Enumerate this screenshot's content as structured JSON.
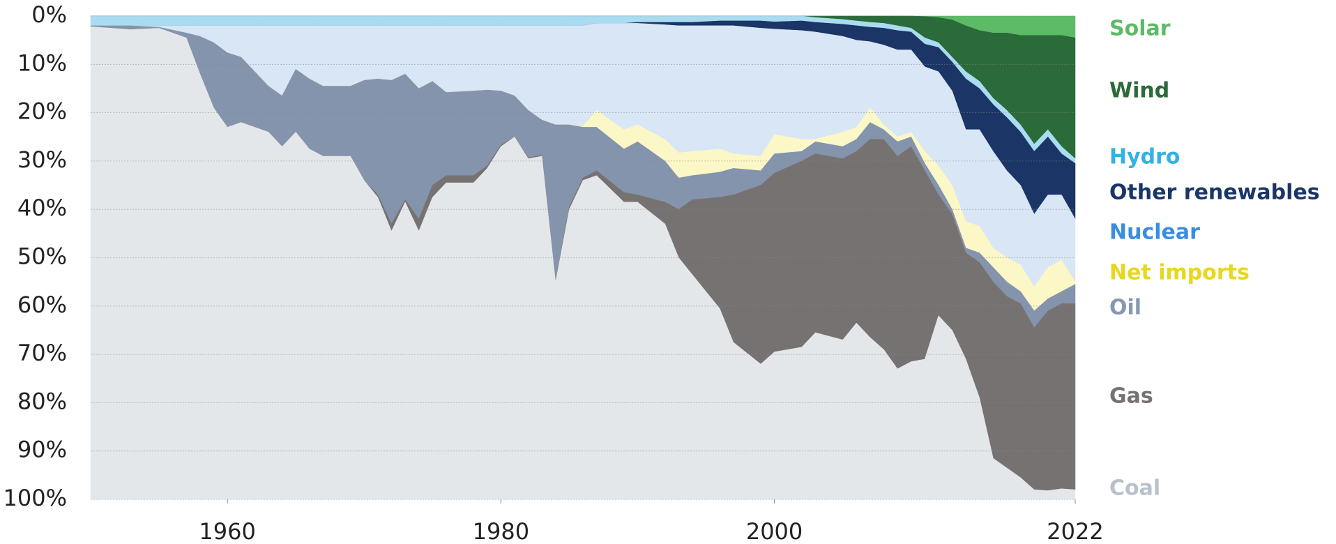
{
  "chart_data": {
    "type": "stacked_area",
    "x": [
      1950,
      1953,
      1955,
      1957,
      1958,
      1959,
      1960,
      1961,
      1963,
      1964,
      1965,
      1966,
      1967,
      1969,
      1970,
      1971,
      1972,
      1973,
      1974,
      1975,
      1976,
      1978,
      1979,
      1980,
      1981,
      1982,
      1983,
      1984,
      1985,
      1986,
      1987,
      1989,
      1990,
      1992,
      1993,
      1994,
      1996,
      1997,
      1999,
      2000,
      2002,
      2003,
      2005,
      2006,
      2007,
      2008,
      2009,
      2010,
      2011,
      2012,
      2013,
      2014,
      2015,
      2016,
      2017,
      2018,
      2019,
      2020,
      2021,
      2022
    ],
    "series": [
      {
        "name": "Solar",
        "color": "#5dbb67",
        "label_color": "#5dbb67",
        "values": [
          0,
          0,
          0,
          0,
          0,
          0,
          0,
          0,
          0,
          0,
          0,
          0,
          0,
          0,
          0,
          0,
          0,
          0,
          0,
          0,
          0,
          0,
          0,
          0,
          0,
          0,
          0,
          0,
          0,
          0,
          0,
          0,
          0,
          0,
          0,
          0,
          0,
          0,
          0,
          0,
          0,
          0,
          0,
          0,
          0,
          0,
          0,
          0,
          0.1,
          0.3,
          0.8,
          2,
          3,
          3.5,
          3.5,
          4,
          4,
          4,
          4,
          4.5
        ]
      },
      {
        "name": "Wind",
        "color": "#2b6a39",
        "label_color": "#2b6a39",
        "values": [
          0,
          0,
          0,
          0,
          0,
          0,
          0,
          0,
          0,
          0,
          0,
          0,
          0,
          0,
          0,
          0,
          0,
          0,
          0,
          0,
          0,
          0,
          0,
          0,
          0,
          0,
          0,
          0,
          0,
          0,
          0,
          0,
          0,
          0,
          0,
          0,
          0,
          0,
          0,
          0,
          0,
          0.3,
          0.7,
          1,
          1.3,
          1.5,
          2,
          2.5,
          4.4,
          5.2,
          7.7,
          9.5,
          10.5,
          13.5,
          16,
          18.5,
          22.5,
          19.5,
          23,
          25
        ]
      },
      {
        "name": "Hydro",
        "color": "#a9dcf0",
        "label_color": "#33b1e3",
        "values": [
          2,
          2,
          2,
          2,
          2,
          2,
          2,
          2,
          2,
          2,
          2,
          2,
          2,
          2,
          2,
          2,
          2,
          2,
          2,
          2,
          2,
          2,
          2,
          2,
          2,
          2,
          2,
          2,
          2,
          2,
          1.5,
          1.5,
          1.3,
          1.3,
          1.3,
          1.3,
          1,
          1,
          1,
          1.2,
          1,
          1,
          1,
          1,
          1,
          1,
          1,
          0.8,
          1.3,
          1,
          1,
          1.5,
          1.5,
          1.3,
          1.5,
          1.5,
          1.5,
          1.5,
          1.5,
          1
        ]
      },
      {
        "name": "Other renewables",
        "color": "#1a3566",
        "label_color": "#1a3566",
        "values": [
          0,
          0,
          0,
          0,
          0,
          0,
          0,
          0,
          0,
          0,
          0,
          0,
          0,
          0,
          0,
          0,
          0,
          0,
          0,
          0,
          0,
          0,
          0,
          0,
          0,
          0,
          0,
          0,
          0,
          0,
          0,
          0,
          0.2,
          0.5,
          0.7,
          0.7,
          1,
          1,
          1.5,
          1.5,
          2,
          2,
          2.5,
          3,
          3,
          3.5,
          4,
          3.7,
          4.7,
          5,
          6,
          10.5,
          8.5,
          9.7,
          11,
          11,
          13,
          12,
          8.5,
          11.5
        ]
      },
      {
        "name": "Nuclear",
        "color": "#d8e6f6",
        "label_color": "#3a8de0",
        "values": [
          0,
          0,
          0.3,
          1.5,
          2.2,
          3.5,
          5.6,
          6.5,
          12.5,
          14.5,
          9,
          11,
          12.5,
          12.5,
          11.3,
          11,
          11.3,
          10,
          13,
          11.5,
          13.8,
          13.5,
          13.3,
          13.5,
          14.5,
          17.5,
          19.5,
          20.5,
          20.5,
          20.8,
          18,
          22,
          21,
          23.7,
          26.3,
          26,
          25.5,
          26.5,
          26.5,
          21.8,
          22.5,
          22.2,
          19.8,
          18,
          13.7,
          16.5,
          18,
          17,
          17.5,
          19.5,
          19.5,
          19,
          20,
          20,
          18,
          16.5,
          15,
          15,
          13.5,
          13
        ]
      },
      {
        "name": "Net imports",
        "color": "#fbf7c6",
        "label_color": "#e6d81c",
        "values": [
          0,
          0,
          0,
          0,
          0,
          0,
          0,
          0,
          0,
          0,
          0,
          0,
          0,
          0,
          0,
          0,
          0,
          0,
          0,
          0,
          0,
          0,
          0,
          0,
          0,
          0,
          0,
          0,
          0,
          0.2,
          3.5,
          4,
          3.5,
          4.5,
          5.2,
          5,
          4.8,
          3,
          3,
          4,
          2.5,
          0.5,
          3,
          2.5,
          3,
          1,
          1,
          1,
          2.5,
          4,
          5,
          5.5,
          5.5,
          4,
          5,
          5.5,
          5,
          6.5,
          6.5,
          0.5
        ]
      },
      {
        "name": "Oil",
        "color": "#8494ad",
        "label_color": "#8797b0",
        "values": [
          0.2,
          0.8,
          0.2,
          1,
          7.8,
          13.5,
          15.4,
          13.5,
          9.5,
          10.5,
          13,
          14.5,
          14.5,
          14.5,
          20.7,
          24,
          29.7,
          26,
          27,
          21.5,
          17.2,
          17.5,
          15.7,
          11.2,
          8.5,
          9.8,
          7.3,
          32.3,
          17,
          10.5,
          9,
          9,
          11,
          8.5,
          6.5,
          5,
          5.2,
          5.5,
          3,
          4,
          2,
          2.5,
          2.5,
          2.5,
          3.5,
          2,
          3,
          2,
          1.5,
          2,
          1,
          1,
          2,
          3,
          3,
          2.5,
          3.5,
          2.5,
          2.5,
          4
        ]
      },
      {
        "name": "Gas",
        "color": "#777272",
        "label_color": "#777272",
        "values": [
          0,
          0,
          0,
          0,
          0,
          0,
          0,
          0,
          0,
          0,
          0,
          0,
          0,
          0,
          0,
          0.5,
          1.5,
          0.5,
          2.5,
          2.5,
          1.5,
          1.5,
          0.5,
          0.3,
          0,
          0.2,
          0.2,
          0.2,
          0.5,
          0.5,
          1,
          2,
          1.5,
          4.5,
          10,
          15.5,
          23,
          30.5,
          37,
          37,
          38.5,
          37,
          37.5,
          35.5,
          41,
          43.5,
          44,
          44.5,
          39,
          25,
          24,
          22,
          28,
          36.5,
          35.5,
          36,
          33.5,
          37.2,
          38.3,
          38.5
        ]
      },
      {
        "name": "Coal",
        "color": "#e4e7ea",
        "label_color": "#b8c1c9",
        "values": [
          97.8,
          97.2,
          97.5,
          95.5,
          88,
          81,
          77,
          78,
          76,
          73,
          76,
          72.5,
          71,
          71,
          66,
          62.5,
          55.5,
          61.5,
          55.5,
          62.5,
          65.5,
          65.5,
          68.5,
          73,
          75,
          70.5,
          71,
          45,
          60,
          66,
          67,
          61.5,
          61.5,
          57,
          50,
          46.5,
          39.5,
          32.5,
          28,
          30.5,
          31.5,
          34.5,
          33,
          36.5,
          33.5,
          31,
          27,
          28.5,
          29,
          38,
          35,
          29,
          21,
          8.5,
          6.5,
          4.5,
          2,
          1.8,
          2.2,
          2
        ]
      }
    ],
    "xlim": [
      1950,
      2022
    ],
    "xticks": [
      1960,
      1980,
      2000,
      2022
    ],
    "ylim": [
      0,
      100
    ],
    "y_inverted": true,
    "yticks": [
      {
        "value": 0,
        "label": "0%"
      },
      {
        "value": 10,
        "label": "10%"
      },
      {
        "value": 20,
        "label": "20%"
      },
      {
        "value": 30,
        "label": "30%"
      },
      {
        "value": 40,
        "label": "40%"
      },
      {
        "value": 50,
        "label": "50%"
      },
      {
        "value": 60,
        "label": "60%"
      },
      {
        "value": 70,
        "label": "70%"
      },
      {
        "value": 80,
        "label": "80%"
      },
      {
        "value": 90,
        "label": "90%"
      },
      {
        "value": 100,
        "label": "100%"
      }
    ],
    "grid": true
  }
}
